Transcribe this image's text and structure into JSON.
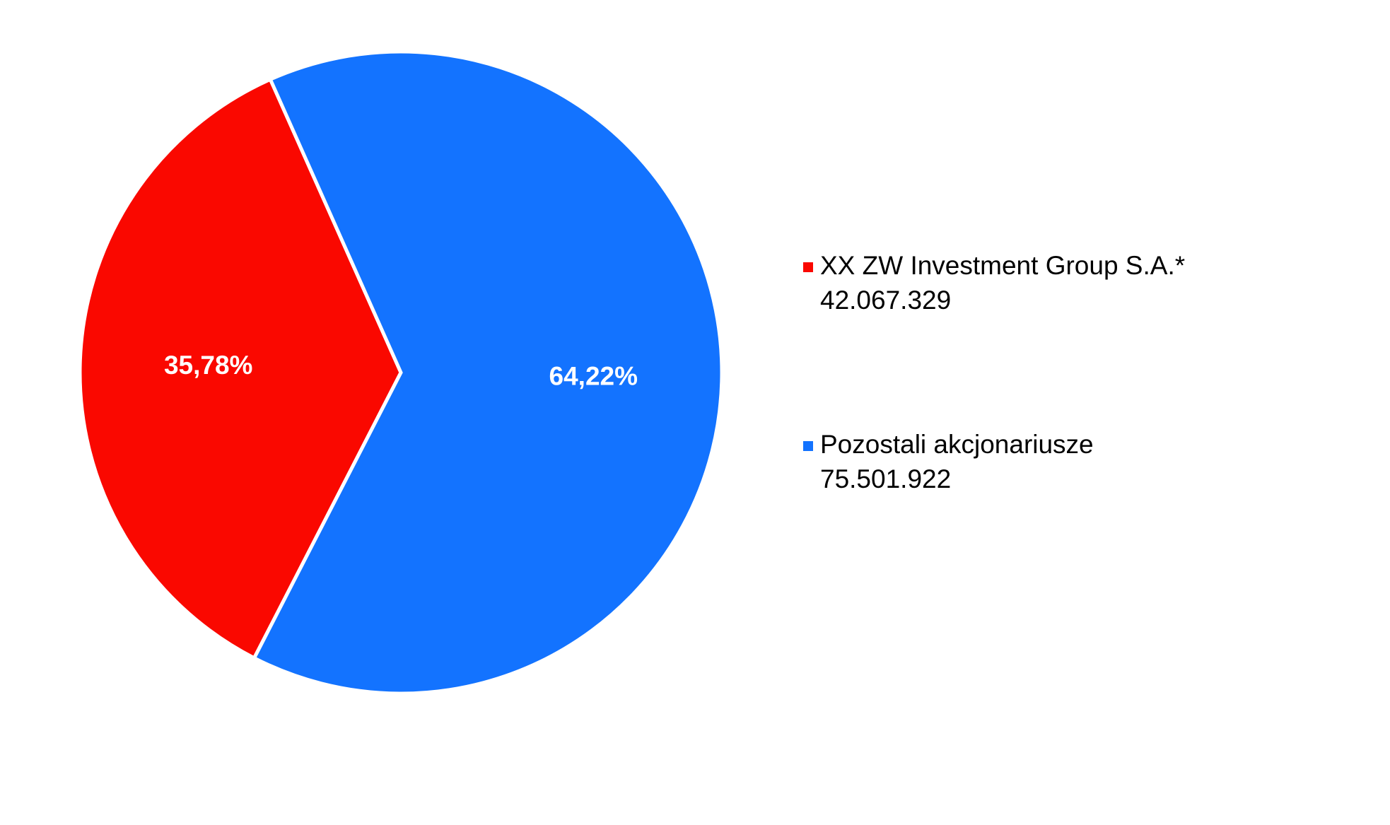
{
  "chart_data": {
    "type": "pie",
    "categories": [
      "XX ZW Investment Group S.A.*",
      "Pozostali akcjonariusze"
    ],
    "legend_values": [
      "42.067.329",
      "75.501.922"
    ],
    "values": [
      35.78,
      64.22
    ],
    "value_labels": [
      "35,78%",
      "64,22%"
    ],
    "colors": [
      "#fa0800",
      "#1373ff"
    ],
    "legend": "right"
  }
}
